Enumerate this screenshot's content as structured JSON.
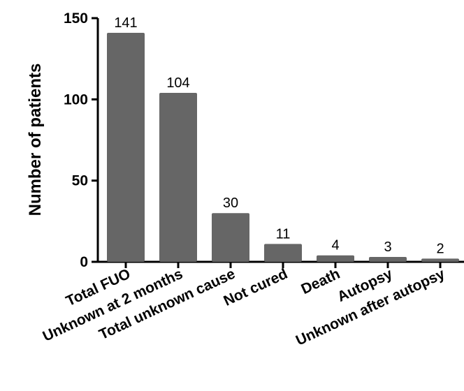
{
  "chart_data": {
    "type": "bar",
    "title": "",
    "xlabel": "",
    "ylabel": "Number of patients",
    "ylim": [
      0,
      150
    ],
    "yticks": [
      0,
      50,
      100,
      150
    ],
    "grid": false,
    "legend": "none",
    "bar_color": "#666666",
    "categories": [
      "Total FUO",
      "Unknown at 2 months",
      "Total unknown cause",
      "Not cured",
      "Death",
      "Autopsy",
      "Unknown after autopsy"
    ],
    "values": [
      141,
      104,
      30,
      11,
      4,
      3,
      2
    ],
    "data_labels": [
      "141",
      "104",
      "30",
      "11",
      "4",
      "3",
      "2"
    ]
  }
}
